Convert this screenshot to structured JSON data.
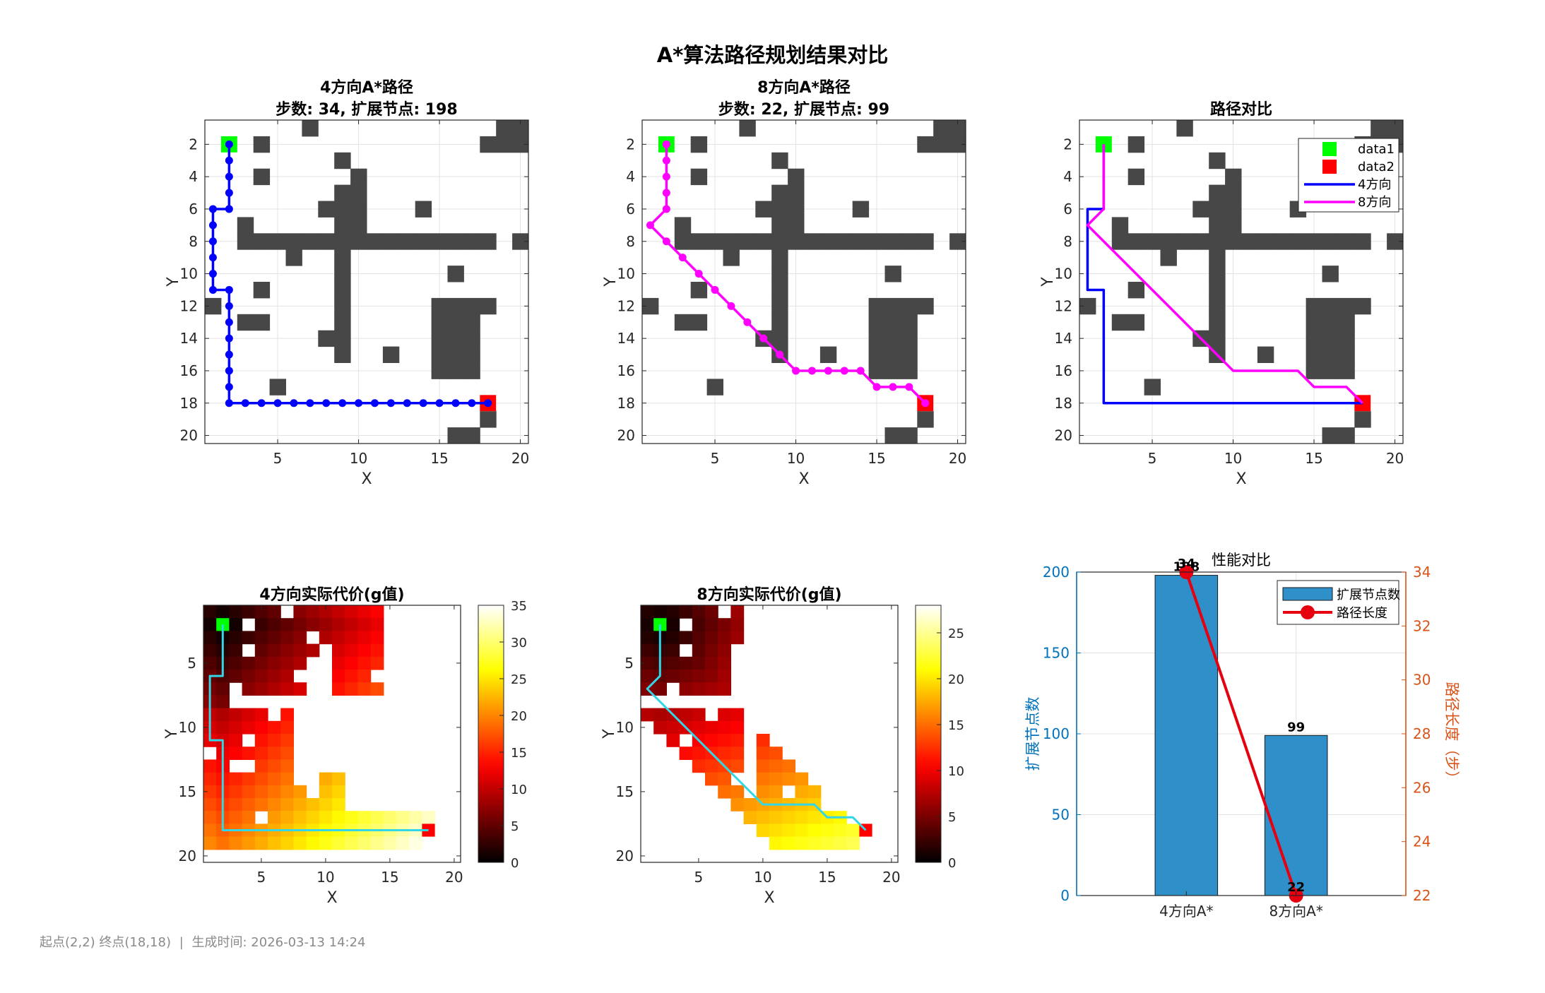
{
  "figure": {
    "title": "A*算法路径规划结果对比",
    "footer_start": "起点(2,2) 终点(18,18)",
    "footer_sep": "|",
    "footer_time": "生成时间: 2026-03-13 14:24"
  },
  "colors": {
    "obstacle": "#474747",
    "start": "#00ff00",
    "goal": "#ff0000",
    "path4": "#0000ff",
    "path8": "#ff00ff",
    "heat_path": "#33d6e6",
    "bar": "#2f8fc8",
    "line": "#e6000f",
    "left_axis": "#0072bd",
    "right_axis": "#d95319"
  },
  "chart_data": [
    {
      "id": "map4",
      "type": "scatter",
      "title": "4方向A*路径",
      "subtitle": "步数: 34, 扩展节点: 198",
      "xlabel": "X",
      "ylabel": "Y",
      "xlim": [
        0.5,
        20.5
      ],
      "ylim": [
        0.5,
        20.5
      ],
      "y_reversed": true,
      "xticks": [
        5,
        10,
        15,
        20
      ],
      "yticks": [
        2,
        4,
        6,
        8,
        10,
        12,
        14,
        16,
        18,
        20
      ],
      "grid": true,
      "show_obstacles": true,
      "paths": [
        {
          "name": "4方向",
          "color": "#0000ff",
          "markers": true,
          "x": [
            2,
            2,
            2,
            2,
            2,
            1,
            1,
            1,
            1,
            1,
            1,
            2,
            2,
            2,
            2,
            2,
            2,
            2,
            2,
            3,
            4,
            5,
            6,
            7,
            8,
            9,
            10,
            11,
            12,
            13,
            14,
            15,
            16,
            17,
            18
          ],
          "y": [
            2,
            3,
            4,
            5,
            6,
            6,
            7,
            8,
            9,
            10,
            11,
            11,
            12,
            13,
            14,
            15,
            16,
            17,
            18,
            18,
            18,
            18,
            18,
            18,
            18,
            18,
            18,
            18,
            18,
            18,
            18,
            18,
            18,
            18,
            18
          ]
        }
      ],
      "start": [
        2,
        2
      ],
      "goal": [
        18,
        18
      ]
    },
    {
      "id": "map8",
      "type": "scatter",
      "title": "8方向A*路径",
      "subtitle": "步数: 22, 扩展节点: 99",
      "xlabel": "X",
      "ylabel": "Y",
      "xlim": [
        0.5,
        20.5
      ],
      "ylim": [
        0.5,
        20.5
      ],
      "y_reversed": true,
      "xticks": [
        5,
        10,
        15,
        20
      ],
      "yticks": [
        2,
        4,
        6,
        8,
        10,
        12,
        14,
        16,
        18,
        20
      ],
      "grid": true,
      "show_obstacles": true,
      "paths": [
        {
          "name": "8方向",
          "color": "#ff00ff",
          "markers": true,
          "x": [
            2,
            2,
            2,
            2,
            2,
            1,
            2,
            3,
            4,
            5,
            6,
            7,
            8,
            9,
            10,
            11,
            12,
            13,
            14,
            15,
            16,
            17,
            18
          ],
          "y": [
            2,
            3,
            4,
            5,
            6,
            7,
            8,
            9,
            10,
            11,
            12,
            13,
            14,
            15,
            16,
            16,
            16,
            16,
            16,
            17,
            17,
            17,
            18
          ]
        }
      ],
      "start": [
        2,
        2
      ],
      "goal": [
        18,
        18
      ]
    },
    {
      "id": "compare",
      "type": "line",
      "title": "路径对比",
      "xlabel": "X",
      "ylabel": "Y",
      "xlim": [
        0.5,
        20.5
      ],
      "ylim": [
        0.5,
        20.5
      ],
      "y_reversed": true,
      "xticks": [
        5,
        10,
        15,
        20
      ],
      "yticks": [
        2,
        4,
        6,
        8,
        10,
        12,
        14,
        16,
        18,
        20
      ],
      "grid": true,
      "show_obstacles": true,
      "legend": "top-right",
      "legend_entries": [
        "data1",
        "data2",
        "4方向",
        "8方向"
      ],
      "paths": [
        {
          "name": "4方向",
          "color": "#0000ff",
          "markers": false,
          "x": [
            2,
            2,
            1,
            1,
            2,
            2,
            18
          ],
          "y": [
            2,
            6,
            6,
            11,
            11,
            18,
            18
          ]
        },
        {
          "name": "8方向",
          "color": "#ff00ff",
          "markers": false,
          "x": [
            2,
            2,
            1,
            10,
            14,
            15,
            17,
            18
          ],
          "y": [
            2,
            6,
            7,
            16,
            16,
            17,
            17,
            18
          ]
        }
      ],
      "start": [
        2,
        2
      ],
      "goal": [
        18,
        18
      ]
    },
    {
      "id": "heat4",
      "type": "heatmap",
      "title": "4方向实际代价(g值)",
      "xlabel": "X",
      "ylabel": "Y",
      "xlim": [
        0.5,
        20.5
      ],
      "ylim": [
        0.5,
        20.5
      ],
      "y_reversed": true,
      "xticks": [
        5,
        10,
        15,
        20
      ],
      "yticks": [
        5,
        10,
        15,
        20
      ],
      "colorbar_range": [
        0,
        35
      ],
      "colorbar_ticks": [
        0,
        5,
        10,
        15,
        20,
        25,
        30,
        35
      ],
      "path": {
        "x": [
          2,
          2,
          1,
          1,
          2,
          2,
          18
        ],
        "y": [
          2,
          6,
          6,
          11,
          11,
          18,
          18
        ]
      },
      "start": [
        2,
        2
      ],
      "goal": [
        18,
        18
      ]
    },
    {
      "id": "heat8",
      "type": "heatmap",
      "title": "8方向实际代价(g值)",
      "xlabel": "X",
      "ylabel": "Y",
      "xlim": [
        0.5,
        20.5
      ],
      "ylim": [
        0.5,
        20.5
      ],
      "y_reversed": true,
      "xticks": [
        5,
        10,
        15,
        20
      ],
      "yticks": [
        5,
        10,
        15,
        20
      ],
      "colorbar_range": [
        0,
        28
      ],
      "colorbar_ticks": [
        0,
        5,
        10,
        15,
        20,
        25
      ],
      "path": {
        "x": [
          2,
          2,
          1,
          10,
          14,
          15,
          17,
          18
        ],
        "y": [
          2,
          6,
          7,
          16,
          16,
          17,
          17,
          18
        ]
      },
      "start": [
        2,
        2
      ],
      "goal": [
        18,
        18
      ]
    },
    {
      "id": "perf",
      "type": "bar",
      "title": "性能对比",
      "categories": [
        "4方向A*",
        "8方向A*"
      ],
      "ylabel": "扩展节点数",
      "ylabel_right": "路径长度（步）",
      "ylim": [
        0,
        200
      ],
      "yticks": [
        0,
        50,
        100,
        150,
        200
      ],
      "ylim_right": [
        22,
        34
      ],
      "yticks_right": [
        22,
        24,
        26,
        28,
        30,
        32,
        34
      ],
      "series": [
        {
          "name": "扩展节点数",
          "values": [
            198,
            99
          ],
          "labels": [
            "198",
            "99"
          ]
        },
        {
          "name": "路径长度",
          "values": [
            34,
            22
          ],
          "labels": [
            "34",
            "22"
          ]
        }
      ],
      "legend": "top-right"
    }
  ]
}
